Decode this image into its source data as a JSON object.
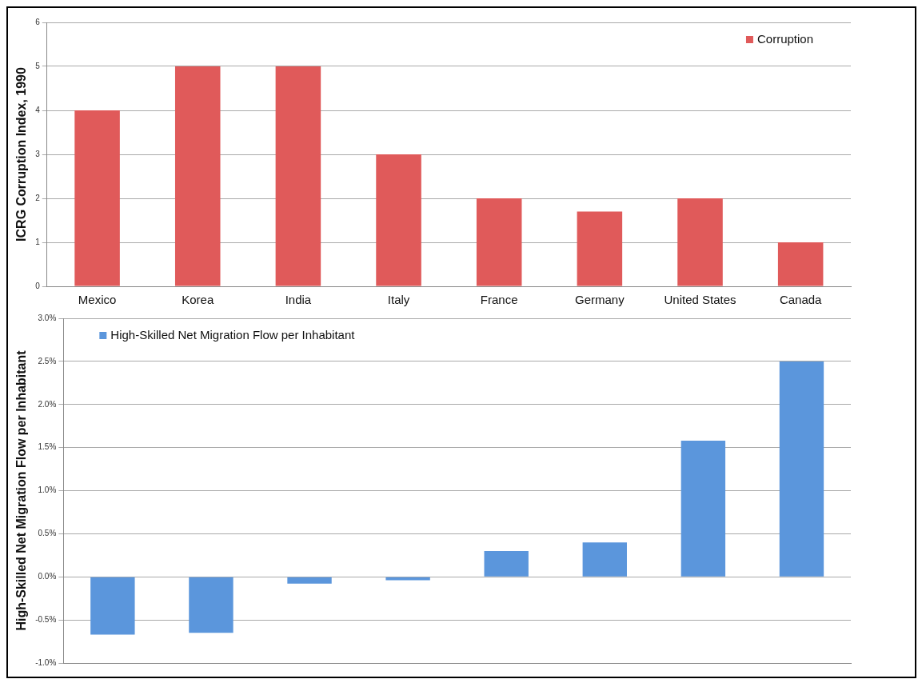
{
  "chart_data": [
    {
      "type": "bar",
      "ylabel": "ICRG Corruption Index, 1990",
      "categories": [
        "Mexico",
        "Korea",
        "India",
        "Italy",
        "France",
        "Germany",
        "United States",
        "Canada"
      ],
      "series": [
        {
          "name": "Corruption",
          "color": "#e05a5a",
          "values": [
            4,
            5,
            5,
            3,
            2,
            1.7,
            2,
            1
          ]
        }
      ],
      "ylim": [
        0,
        6
      ],
      "yticks": [
        0,
        1,
        2,
        3,
        4,
        5,
        6
      ],
      "grid": "y",
      "legend": "top right"
    },
    {
      "type": "bar",
      "ylabel": "High-Skilled Net Migration Flow per Inhabitant",
      "categories": [
        null,
        null,
        null,
        null,
        null,
        null,
        null,
        null
      ],
      "series": [
        {
          "name": "High-Skilled Net Migration Flow per Inhabitant",
          "color": "#5b96dc",
          "values": [
            -0.67,
            -0.65,
            -0.08,
            -0.04,
            0.3,
            0.4,
            1.58,
            2.5
          ]
        }
      ],
      "ylim": [
        -1,
        3
      ],
      "yticks": [
        {
          "value": -1,
          "label": "-1.0%"
        },
        {
          "value": -0.5,
          "label": "-0.5%"
        },
        {
          "value": 0,
          "label": "0.0%"
        },
        {
          "value": 0.5,
          "label": "0.5%"
        },
        {
          "value": 1,
          "label": "1.0%"
        },
        {
          "value": 1.5,
          "label": "1.5%"
        },
        {
          "value": 2,
          "label": "2.0%"
        },
        {
          "value": 2.5,
          "label": "2.5%"
        },
        {
          "value": 3,
          "label": "3.0%"
        }
      ],
      "grid": "y",
      "legend": "top left",
      "tick_labels": "y"
    }
  ]
}
